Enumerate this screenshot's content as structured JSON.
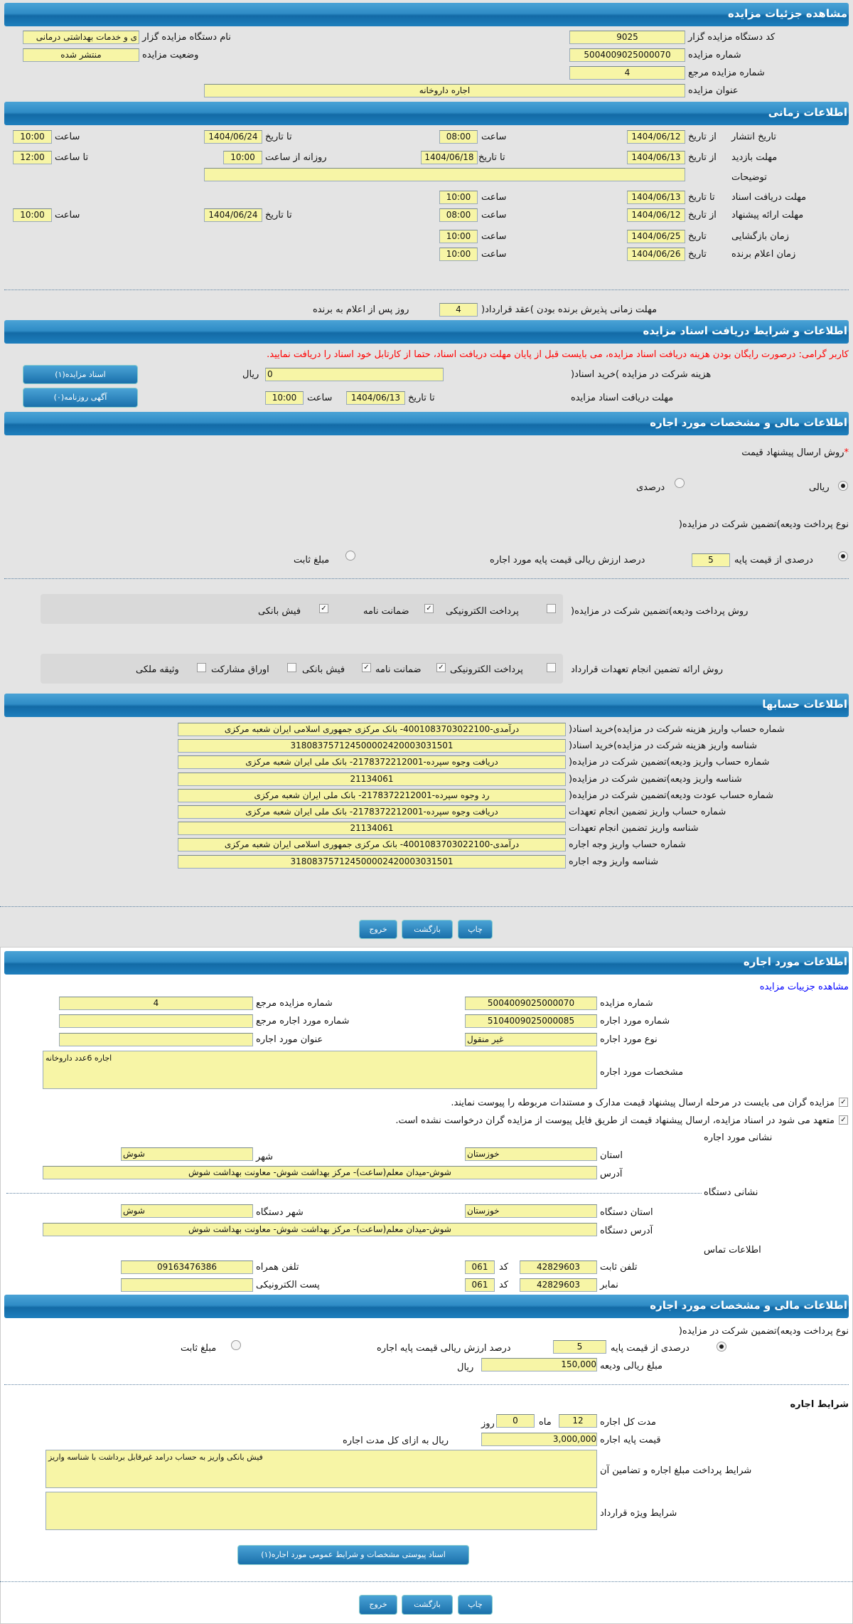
{
  "colors": {
    "header": "#1f7fbf",
    "field_bg": "#f7f5a6",
    "warning": "#ff0000",
    "link": "#0000ff"
  },
  "s1": {
    "title": "مشاهده جزئیات مزایده",
    "org_code_label": "کد دستگاه مزایده گزار",
    "org_code": "9025",
    "org_name_label": "نام دستگاه مزایده گزار",
    "org_name": "ی و خدمات بهداشتی درمانی",
    "auction_no_label": "شماره مزایده",
    "auction_no": "5004009025000070",
    "status_label": "وضعیت مزایده",
    "status": "منتشر شده",
    "ref_no_label": "شماره مزایده مرجع",
    "ref_no": "4",
    "title_label": "عنوان مزایده",
    "auction_title": "اجاره داروخانه"
  },
  "s2": {
    "title": "اطلاعات زمانی",
    "publish": {
      "label": "تاریخ انتشار",
      "from_label": "از تاریخ",
      "from": "1404/06/12",
      "time_label": "ساعت",
      "time": "08:00",
      "to_label": "تا تاریخ",
      "to": "1404/06/24",
      "time2_label": "ساعت",
      "time2": "10:00"
    },
    "visit": {
      "label": "مهلت بازدید",
      "from_label": "از تاریخ",
      "from": "1404/06/13",
      "to_label": "تا تاریخ",
      "to": "1404/06/18",
      "daily_label": "روزانه از ساعت",
      "daily_from": "10:00",
      "daily_to_label": "تا ساعت",
      "daily_to": "12:00"
    },
    "notes_label": "توضیحات",
    "notes": "",
    "docs": {
      "label": "مهلت دریافت اسناد",
      "to_label": "تا تاریخ",
      "to": "1404/06/13",
      "time_label": "ساعت",
      "time": "10:00"
    },
    "offer": {
      "label": "مهلت ارائه پیشنهاد",
      "from_label": "از تاریخ",
      "from": "1404/06/12",
      "time_label": "ساعت",
      "time": "08:00",
      "to_label": "تا تاریخ",
      "to": "1404/06/24",
      "time2_label": "ساعت",
      "time2": "10:00"
    },
    "opening": {
      "label": "زمان بازگشایی",
      "date_label": "تاریخ",
      "date": "1404/06/25",
      "time_label": "ساعت",
      "time": "10:00"
    },
    "winner": {
      "label": "زمان اعلام برنده",
      "date_label": "تاریخ",
      "date": "1404/06/26",
      "time_label": "ساعت",
      "time": "10:00"
    },
    "acceptance_label": "مهلت زمانی پذیرش برنده بودن )عقد قرارداد(",
    "acceptance_days": "4",
    "acceptance_suffix": "روز پس از اعلام به برنده"
  },
  "s3": {
    "title": "اطلاعات و شرایط دریافت اسناد مزایده",
    "warning": "کاربر گرامی: درصورت رایگان بودن هزینه دریافت اسناد مزایده، می بایست قبل از پایان مهلت دریافت اسناد، حتما از کارتابل خود اسناد را دریافت نمایید.",
    "cost_label": "هزینه شرکت در مزایده )خرید اسناد(",
    "cost": "0",
    "rial": "ریال",
    "docs_button": "اسناد مزایده(۱)",
    "deadline_label": "مهلت دریافت اسناد مزایده",
    "to_label": "تا تاریخ",
    "to": "1404/06/13",
    "time_label": "ساعت",
    "time": "10:00",
    "ad_button": "آگهی روزنامه(۰)"
  },
  "s4": {
    "title": "اطلاعات مالی و مشخصات مورد اجاره",
    "price_method_label": "روش ارسال پیشنهاد قیمت",
    "required_mark": "*",
    "price_methods": [
      {
        "label": "ریالی",
        "selected": true
      },
      {
        "label": "درصدی",
        "selected": false
      }
    ],
    "deposit_type_label": "نوع پرداخت ودیعه)تضمین شرکت در مزایده(",
    "deposit_percent_label": "درصدی از قیمت پایه",
    "deposit_percent": "5",
    "deposit_percent_suffix": "درصد ارزش ریالی قیمت پایه مورد اجاره",
    "deposit_fixed_label": "مبلغ ثابت",
    "deposit_percent_selected": true,
    "deposit_method_label": "روش پرداخت ودیعه)تضمین شرکت در مزایده(",
    "deposit_methods": [
      {
        "label": "پرداخت الکترونیکی",
        "checked": false
      },
      {
        "label": "ضمانت نامه",
        "checked": true
      },
      {
        "label": "فیش بانکی",
        "checked": true
      }
    ],
    "guarantee_label": "روش ارائه تضمین انجام تعهدات قرارداد",
    "guarantee_methods": [
      {
        "label": "پرداخت الکترونیکی",
        "checked": false
      },
      {
        "label": "ضمانت نامه",
        "checked": true
      },
      {
        "label": "فیش بانکی",
        "checked": true
      },
      {
        "label": "اوراق مشارکت",
        "checked": false
      },
      {
        "label": "وثیقه ملکی",
        "checked": false
      }
    ]
  },
  "s5": {
    "title": "اطلاعات حسابها",
    "rows": [
      {
        "label": "شماره حساب واریز هزینه شرکت در مزایده)خرید اسناد(",
        "value": "درآمدی-4001083703022100- بانک مرکزی جمهوری اسلامی ایران شعبه مرکزی"
      },
      {
        "label": "شناسه واریز هزینه شرکت در مزایده)خرید اسناد(",
        "value": "318083757124500002420003031501"
      },
      {
        "label": "شماره حساب واریز ودیعه)تضمین شرکت در مزایده(",
        "value": "دریافت وجوه سپرده-2178372212001- بانک ملی ایران شعبه مرکزی"
      },
      {
        "label": "شناسه واریز ودیعه)تضمین شرکت در مزایده(",
        "value": "21134061"
      },
      {
        "label": "شماره حساب عودت ودیعه)تضمین شرکت در مزایده(",
        "value": "رد وجوه سپرده-2178372212001- بانک ملی ایران شعبه مرکزی"
      },
      {
        "label": "شماره حساب واریز تضمین انجام تعهدات",
        "value": "دریافت وجوه سپرده-2178372212001- بانک ملی ایران شعبه مرکزی"
      },
      {
        "label": "شناسه واریز تضمین انجام تعهدات",
        "value": "21134061"
      },
      {
        "label": "شماره حساب واریز وجه اجاره",
        "value": "درآمدی-4001083703022100- بانک مرکزی جمهوری اسلامی ایران شعبه مرکزی"
      },
      {
        "label": "شناسه واریز وجه اجاره",
        "value": "318083757124500002420003031501"
      }
    ]
  },
  "actions": {
    "print": "چاپ",
    "back": "بازگشت",
    "exit": "خروج"
  },
  "lease": {
    "title": "اطلاعات مورد اجاره",
    "details_link": "مشاهده جزییات مزایده",
    "auction_no_label": "شماره مزایده",
    "auction_no": "5004009025000070",
    "ref_no_label": "شماره مزایده مرجع",
    "ref_no": "4",
    "item_no_label": "شماره مورد اجاره",
    "item_no": "5104009025000085",
    "item_ref_label": "شماره مورد اجاره مرجع",
    "item_ref": "",
    "type_label": "نوع مورد اجاره",
    "type": "غیر منقول",
    "item_title_label": "عنوان مورد اجاره",
    "item_title": "",
    "spec_label": "مشخصات مورد اجاره",
    "spec": "اجاره 6عدد داروخانه",
    "check1": "مزایده گران می بایست در مرحله ارسال پیشنهاد قیمت مدارک و مستندات مربوطه را پیوست نمایند.",
    "check2": "متعهد می شود در اسناد مزایده، ارسال پیشنهاد قیمت از طریق فایل پیوست از مزایده گران درخواست نشده است.",
    "addr_title": "نشانی مورد اجاره",
    "province_label": "استان",
    "province": "خوزستان",
    "city_label": "شهر",
    "city": "شوش",
    "address_label": "آدرس",
    "address": "شوش-میدان معلم(ساعت)- مرکز بهداشت شوش- معاونت بهداشت شوش",
    "org_addr_title": "نشانی دستگاه",
    "org_province_label": "استان دستگاه",
    "org_province": "خوزستان",
    "org_city_label": "شهر دستگاه",
    "org_city": "شوش",
    "org_address_label": "آدرس دستگاه",
    "org_address": "شوش-میدان معلم(ساعت)- مرکز بهداشت شوش- معاونت بهداشت شوش",
    "contact_title": "اطلاعات تماس",
    "phone_label": "تلفن ثابت",
    "phone": "42829603",
    "code_label": "کد",
    "phone_code": "061",
    "mobile_label": "تلفن همراه",
    "mobile": "09163476386",
    "fax_label": "نمابر",
    "fax": "42829603",
    "fax_code": "061",
    "email_label": "پست الکترونیکی",
    "email": ""
  },
  "lease_fin": {
    "title": "اطلاعات مالی و مشخصات مورد اجاره",
    "deposit_type_label": "نوع پرداخت ودیعه)تضمین شرکت در مزایده(",
    "percent_label": "درصدی از قیمت پایه",
    "percent": "5",
    "percent_suffix": "درصد ارزش ریالی قیمت پایه اجاره",
    "fixed_label": "مبلغ ثابت",
    "amount_label": "مبلغ ریالی ودیعه",
    "amount": "150,000",
    "rial": "ریال",
    "terms_title": "شرایط اجاره",
    "duration_label": "مدت کل اجاره",
    "months": "12",
    "month_label": "ماه",
    "days": "0",
    "day_label": "روز",
    "base_price_label": "قیمت پایه اجاره",
    "base_price": "3,000,000",
    "base_price_suffix": "ریال به ازای کل مدت اجاره",
    "payment_terms_label": "شرایط پرداخت مبلغ اجاره و تضامین آن",
    "payment_terms": "فیش بانکی واریز به حساب درامد غیرقابل برداشت با شناسه واریز",
    "special_terms_label": "شرایط ویژه قرارداد",
    "special_terms": "",
    "attach_button": "اسناد پیوستی مشخصات و شرایط عمومی مورد اجاره(۱)"
  }
}
